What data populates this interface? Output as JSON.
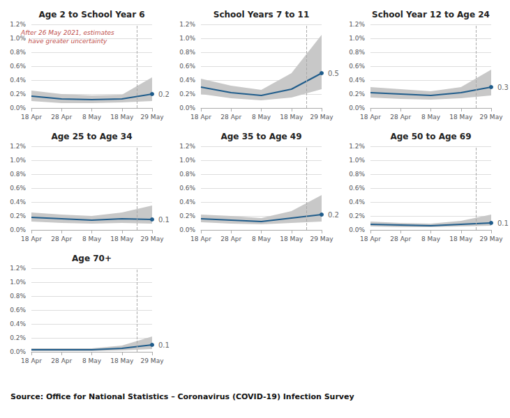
{
  "chart_data": [
    {
      "type": "line",
      "title": "Age 2 to School Year 6",
      "categories": [
        "18 Apr",
        "28 Apr",
        "8 May",
        "18 May",
        "29 May"
      ],
      "values": [
        0.17,
        0.13,
        0.12,
        0.13,
        0.2
      ],
      "value_labels": [
        null,
        null,
        null,
        null,
        "0.2"
      ],
      "band": {
        "upper": [
          0.25,
          0.2,
          0.18,
          0.19,
          0.44
        ],
        "lower": [
          0.1,
          0.07,
          0.07,
          0.08,
          0.1
        ],
        "color": "#c8c8c8"
      },
      "color": "#1f5c8b",
      "marker": "circle",
      "vline": {
        "between": [
          "18 May",
          "29 May"
        ],
        "line_style": "dashed"
      },
      "annotation": {
        "text": "After 26 May 2021, estimates\nhave greater uncertainty",
        "color": "#c0504d"
      },
      "ylim": [
        0.0,
        1.2
      ],
      "yticks": [
        {
          "value": 0.0,
          "label": "0.0%"
        },
        {
          "value": 0.2,
          "label": "0.2%"
        },
        {
          "value": 0.4,
          "label": "0.4%"
        },
        {
          "value": 0.6,
          "label": "0.6%"
        },
        {
          "value": 0.8,
          "label": "0.8%"
        },
        {
          "value": 1.0,
          "label": "1.0%"
        },
        {
          "value": 1.2,
          "label": "1.2%"
        }
      ],
      "grid": true
    },
    {
      "type": "line",
      "title": "School Years 7 to 11",
      "categories": [
        "18 Apr",
        "28 Apr",
        "8 May",
        "18 May",
        "29 May"
      ],
      "values": [
        0.3,
        0.22,
        0.18,
        0.27,
        0.5
      ],
      "value_labels": [
        null,
        null,
        null,
        null,
        "0.5"
      ],
      "band": {
        "upper": [
          0.42,
          0.32,
          0.26,
          0.5,
          1.05
        ],
        "lower": [
          0.2,
          0.14,
          0.11,
          0.15,
          0.27
        ],
        "color": "#c8c8c8"
      },
      "color": "#1f5c8b",
      "marker": "circle",
      "vline": {
        "between": [
          "18 May",
          "29 May"
        ],
        "line_style": "dashed"
      },
      "ylim": [
        0.0,
        1.2
      ],
      "yticks": [
        {
          "value": 0.0,
          "label": "0.0%"
        },
        {
          "value": 0.2,
          "label": "0.2%"
        },
        {
          "value": 0.4,
          "label": "0.4%"
        },
        {
          "value": 0.6,
          "label": "0.6%"
        },
        {
          "value": 0.8,
          "label": "0.8%"
        },
        {
          "value": 1.0,
          "label": "1.0%"
        },
        {
          "value": 1.2,
          "label": "1.2%"
        }
      ],
      "grid": true
    },
    {
      "type": "line",
      "title": "School Year 12 to Age 24",
      "categories": [
        "18 Apr",
        "28 Apr",
        "8 May",
        "18 May",
        "29 May"
      ],
      "values": [
        0.22,
        0.2,
        0.18,
        0.22,
        0.3
      ],
      "value_labels": [
        null,
        null,
        null,
        null,
        "0.3"
      ],
      "band": {
        "upper": [
          0.3,
          0.27,
          0.24,
          0.3,
          0.55
        ],
        "lower": [
          0.15,
          0.13,
          0.12,
          0.14,
          0.18
        ],
        "color": "#c8c8c8"
      },
      "color": "#1f5c8b",
      "marker": "circle",
      "vline": {
        "between": [
          "18 May",
          "29 May"
        ],
        "line_style": "dashed"
      },
      "ylim": [
        0.0,
        1.2
      ],
      "yticks": [
        {
          "value": 0.0,
          "label": "0.0%"
        },
        {
          "value": 0.2,
          "label": "0.2%"
        },
        {
          "value": 0.4,
          "label": "0.4%"
        },
        {
          "value": 0.6,
          "label": "0.6%"
        },
        {
          "value": 0.8,
          "label": "0.8%"
        },
        {
          "value": 1.0,
          "label": "1.0%"
        },
        {
          "value": 1.2,
          "label": "1.2%"
        }
      ],
      "grid": true
    },
    {
      "type": "line",
      "title": "Age 25 to Age 34",
      "categories": [
        "18 Apr",
        "28 Apr",
        "8 May",
        "18 May",
        "29 May"
      ],
      "values": [
        0.18,
        0.16,
        0.14,
        0.16,
        0.15
      ],
      "value_labels": [
        null,
        null,
        null,
        null,
        "0.1"
      ],
      "band": {
        "upper": [
          0.25,
          0.22,
          0.2,
          0.25,
          0.35
        ],
        "lower": [
          0.12,
          0.1,
          0.09,
          0.1,
          0.09
        ],
        "color": "#c8c8c8"
      },
      "color": "#1f5c8b",
      "marker": "circle",
      "vline": {
        "between": [
          "18 May",
          "29 May"
        ],
        "line_style": "dashed"
      },
      "ylim": [
        0.0,
        1.2
      ],
      "yticks": [
        {
          "value": 0.0,
          "label": "0.0%"
        },
        {
          "value": 0.2,
          "label": "0.2%"
        },
        {
          "value": 0.4,
          "label": "0.4%"
        },
        {
          "value": 0.6,
          "label": "0.6%"
        },
        {
          "value": 0.8,
          "label": "0.8%"
        },
        {
          "value": 1.0,
          "label": "1.0%"
        },
        {
          "value": 1.2,
          "label": "1.2%"
        }
      ],
      "grid": true
    },
    {
      "type": "line",
      "title": "Age 35 to Age 49",
      "categories": [
        "18 Apr",
        "28 Apr",
        "8 May",
        "18 May",
        "29 May"
      ],
      "values": [
        0.16,
        0.14,
        0.12,
        0.17,
        0.22
      ],
      "value_labels": [
        null,
        null,
        null,
        null,
        "0.2"
      ],
      "band": {
        "upper": [
          0.22,
          0.2,
          0.17,
          0.27,
          0.5
        ],
        "lower": [
          0.11,
          0.09,
          0.08,
          0.1,
          0.12
        ],
        "color": "#c8c8c8"
      },
      "color": "#1f5c8b",
      "marker": "circle",
      "vline": {
        "between": [
          "18 May",
          "29 May"
        ],
        "line_style": "dashed"
      },
      "ylim": [
        0.0,
        1.2
      ],
      "yticks": [
        {
          "value": 0.0,
          "label": "0.0%"
        },
        {
          "value": 0.2,
          "label": "0.2%"
        },
        {
          "value": 0.4,
          "label": "0.4%"
        },
        {
          "value": 0.6,
          "label": "0.6%"
        },
        {
          "value": 0.8,
          "label": "0.8%"
        },
        {
          "value": 1.0,
          "label": "1.0%"
        },
        {
          "value": 1.2,
          "label": "1.2%"
        }
      ],
      "grid": true
    },
    {
      "type": "line",
      "title": "Age 50 to Age 69",
      "categories": [
        "18 Apr",
        "28 Apr",
        "8 May",
        "18 May",
        "29 May"
      ],
      "values": [
        0.08,
        0.07,
        0.06,
        0.08,
        0.1
      ],
      "value_labels": [
        null,
        null,
        null,
        null,
        "0.1"
      ],
      "band": {
        "upper": [
          0.12,
          0.1,
          0.09,
          0.13,
          0.22
        ],
        "lower": [
          0.05,
          0.04,
          0.04,
          0.05,
          0.06
        ],
        "color": "#c8c8c8"
      },
      "color": "#1f5c8b",
      "marker": "circle",
      "vline": {
        "between": [
          "18 May",
          "29 May"
        ],
        "line_style": "dashed"
      },
      "ylim": [
        0.0,
        1.2
      ],
      "yticks": [
        {
          "value": 0.0,
          "label": "0.0%"
        },
        {
          "value": 0.2,
          "label": "0.2%"
        },
        {
          "value": 0.4,
          "label": "0.4%"
        },
        {
          "value": 0.6,
          "label": "0.6%"
        },
        {
          "value": 0.8,
          "label": "0.8%"
        },
        {
          "value": 1.0,
          "label": "1.0%"
        },
        {
          "value": 1.2,
          "label": "1.2%"
        }
      ],
      "grid": true
    },
    {
      "type": "line",
      "title": "Age 70+",
      "categories": [
        "18 Apr",
        "28 Apr",
        "8 May",
        "18 May",
        "29 May"
      ],
      "values": [
        0.03,
        0.03,
        0.03,
        0.05,
        0.1
      ],
      "value_labels": [
        null,
        null,
        null,
        null,
        "0.1"
      ],
      "band": {
        "upper": [
          0.05,
          0.05,
          0.05,
          0.09,
          0.22
        ],
        "lower": [
          0.01,
          0.01,
          0.01,
          0.02,
          0.04
        ],
        "color": "#c8c8c8"
      },
      "color": "#1f5c8b",
      "marker": "circle",
      "vline": {
        "between": [
          "18 May",
          "29 May"
        ],
        "line_style": "dashed"
      },
      "ylim": [
        0.0,
        1.2
      ],
      "yticks": [
        {
          "value": 0.0,
          "label": "0.0%"
        },
        {
          "value": 0.2,
          "label": "0.2%"
        },
        {
          "value": 0.4,
          "label": "0.4%"
        },
        {
          "value": 0.6,
          "label": "0.6%"
        },
        {
          "value": 0.8,
          "label": "0.8%"
        },
        {
          "value": 1.0,
          "label": "1.0%"
        },
        {
          "value": 1.2,
          "label": "1.2%"
        }
      ],
      "grid": true
    }
  ],
  "source": "Source: Office for National Statistics – Coronavirus (COVID-19) Infection Survey"
}
